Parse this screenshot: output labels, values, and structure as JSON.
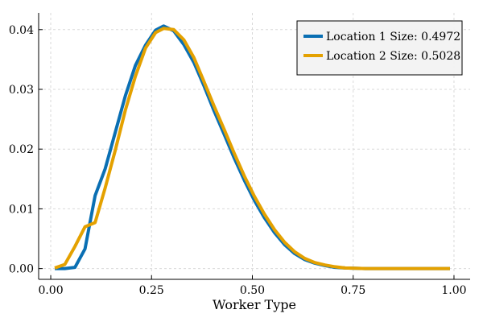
{
  "chart_data": {
    "type": "line",
    "xlabel": "Worker Type",
    "ylabel": "",
    "title": "",
    "xlim": [
      -0.03,
      1.04
    ],
    "ylim": [
      -0.0018,
      0.0428
    ],
    "xticks": [
      0.0,
      0.25,
      0.5,
      0.75,
      1.0
    ],
    "xtick_labels": [
      "0.00",
      "0.25",
      "0.50",
      "0.75",
      "1.00"
    ],
    "yticks": [
      0.0,
      0.01,
      0.02,
      0.03,
      0.04
    ],
    "ytick_labels": [
      "0.00",
      "0.01",
      "0.02",
      "0.03",
      "0.04"
    ],
    "grid": true,
    "legend_position": "top-right",
    "series": [
      {
        "name": "Location 1 Size: 0.4972",
        "color": "#0a6fb3",
        "points": [
          [
            0.01,
            0.0
          ],
          [
            0.035,
            0.0
          ],
          [
            0.06,
            0.0002
          ],
          [
            0.085,
            0.0033
          ],
          [
            0.11,
            0.0122
          ],
          [
            0.135,
            0.0167
          ],
          [
            0.16,
            0.0228
          ],
          [
            0.185,
            0.0289
          ],
          [
            0.21,
            0.034
          ],
          [
            0.235,
            0.0374
          ],
          [
            0.26,
            0.0399
          ],
          [
            0.28,
            0.0406
          ],
          [
            0.305,
            0.0398
          ],
          [
            0.33,
            0.0375
          ],
          [
            0.355,
            0.0345
          ],
          [
            0.38,
            0.0306
          ],
          [
            0.405,
            0.0264
          ],
          [
            0.43,
            0.0225
          ],
          [
            0.455,
            0.0185
          ],
          [
            0.48,
            0.0148
          ],
          [
            0.505,
            0.0114
          ],
          [
            0.53,
            0.0085
          ],
          [
            0.555,
            0.006
          ],
          [
            0.58,
            0.004
          ],
          [
            0.605,
            0.0025
          ],
          [
            0.63,
            0.0015
          ],
          [
            0.655,
            0.0009
          ],
          [
            0.68,
            0.0005
          ],
          [
            0.705,
            0.0002
          ],
          [
            0.73,
            0.0001
          ],
          [
            0.78,
            0.0
          ],
          [
            0.83,
            0.0
          ],
          [
            0.88,
            0.0
          ],
          [
            0.93,
            0.0
          ],
          [
            0.99,
            0.0
          ]
        ]
      },
      {
        "name": "Location 2 Size: 0.5028",
        "color": "#e4a100",
        "points": [
          [
            0.01,
            0.0001
          ],
          [
            0.035,
            0.0007
          ],
          [
            0.06,
            0.0037
          ],
          [
            0.085,
            0.007
          ],
          [
            0.11,
            0.0077
          ],
          [
            0.135,
            0.0135
          ],
          [
            0.16,
            0.0198
          ],
          [
            0.185,
            0.0265
          ],
          [
            0.21,
            0.0322
          ],
          [
            0.235,
            0.0369
          ],
          [
            0.26,
            0.0395
          ],
          [
            0.28,
            0.0402
          ],
          [
            0.305,
            0.04
          ],
          [
            0.33,
            0.0383
          ],
          [
            0.355,
            0.0353
          ],
          [
            0.38,
            0.0313
          ],
          [
            0.405,
            0.0272
          ],
          [
            0.43,
            0.0233
          ],
          [
            0.455,
            0.0193
          ],
          [
            0.48,
            0.0155
          ],
          [
            0.505,
            0.0121
          ],
          [
            0.53,
            0.0091
          ],
          [
            0.555,
            0.0065
          ],
          [
            0.58,
            0.0044
          ],
          [
            0.605,
            0.0028
          ],
          [
            0.63,
            0.0017
          ],
          [
            0.655,
            0.001
          ],
          [
            0.68,
            0.0006
          ],
          [
            0.705,
            0.0003
          ],
          [
            0.73,
            0.0001
          ],
          [
            0.78,
            0.0
          ],
          [
            0.83,
            0.0
          ],
          [
            0.88,
            0.0
          ],
          [
            0.93,
            0.0
          ],
          [
            0.99,
            0.0
          ]
        ]
      }
    ]
  }
}
